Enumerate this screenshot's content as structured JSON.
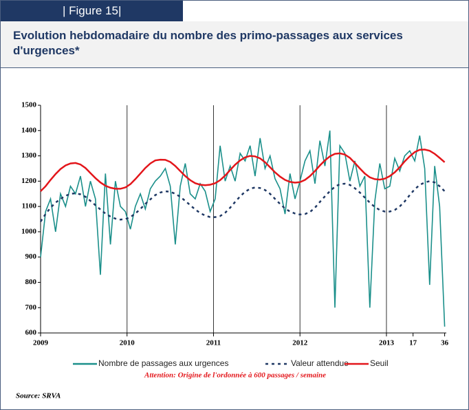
{
  "header": {
    "figure": "| Figure 15|"
  },
  "chart_data": {
    "type": "line",
    "title": "Evolution hebdomadaire du nombre des primo-passages  aux services d'urgences*",
    "x": [
      0,
      3,
      6,
      9,
      12,
      15,
      18,
      21,
      24,
      27,
      30,
      33,
      36,
      39,
      42,
      45,
      48,
      51,
      54,
      57,
      60,
      63,
      66,
      69,
      72,
      75,
      78,
      81,
      84,
      87,
      90,
      93,
      96,
      99,
      102,
      105,
      108,
      111,
      114,
      117,
      120,
      123,
      126,
      129,
      132,
      135,
      138,
      141,
      144,
      147,
      150,
      153,
      156,
      159,
      162,
      165,
      168,
      171,
      174,
      177,
      180,
      183,
      186,
      189,
      192,
      195,
      198,
      201,
      204,
      207,
      210,
      213,
      216,
      219,
      222,
      225,
      228,
      231,
      234,
      237,
      240,
      243
    ],
    "xlim": [
      0,
      244
    ],
    "xticks": [
      {
        "value": 0,
        "label": "2009"
      },
      {
        "value": 52,
        "label": "2010"
      },
      {
        "value": 104,
        "label": "2011"
      },
      {
        "value": 156,
        "label": "2012"
      },
      {
        "value": 208,
        "label": "2013"
      },
      {
        "value": 224,
        "label": "17"
      },
      {
        "value": 243,
        "label": "36"
      }
    ],
    "ylim": [
      600,
      1500
    ],
    "yticks": [
      600,
      700,
      800,
      900,
      1000,
      1100,
      1200,
      1300,
      1400,
      1500
    ],
    "series": [
      {
        "name": "Nombre de passages aux urgences",
        "color": "#1a8f8a",
        "linestyle": "solid",
        "values": [
          900,
          1080,
          1130,
          1000,
          1150,
          1100,
          1180,
          1150,
          1220,
          1100,
          1200,
          1130,
          830,
          1230,
          950,
          1200,
          1100,
          1080,
          1010,
          1100,
          1150,
          1090,
          1170,
          1200,
          1220,
          1250,
          1180,
          950,
          1180,
          1270,
          1150,
          1130,
          1190,
          1160,
          1080,
          1130,
          1340,
          1200,
          1260,
          1200,
          1310,
          1280,
          1340,
          1220,
          1370,
          1250,
          1300,
          1210,
          1170,
          1070,
          1230,
          1130,
          1200,
          1280,
          1320,
          1190,
          1360,
          1260,
          1400,
          700,
          1340,
          1310,
          1200,
          1280,
          1180,
          1220,
          700,
          1120,
          1270,
          1170,
          1180,
          1290,
          1240,
          1300,
          1320,
          1280,
          1380,
          1250,
          790,
          1260,
          1100,
          625
        ]
      },
      {
        "name": "Valeur attendue",
        "color": "#1f3864",
        "linestyle": "dotted",
        "values": [
          1040,
          1070,
          1095,
          1115,
          1130,
          1142,
          1150,
          1152,
          1148,
          1138,
          1122,
          1105,
          1088,
          1072,
          1060,
          1052,
          1048,
          1050,
          1058,
          1072,
          1090,
          1110,
          1128,
          1145,
          1155,
          1160,
          1158,
          1150,
          1138,
          1122,
          1105,
          1088,
          1074,
          1064,
          1058,
          1058,
          1062,
          1075,
          1095,
          1118,
          1140,
          1158,
          1170,
          1175,
          1173,
          1165,
          1150,
          1130,
          1110,
          1092,
          1080,
          1072,
          1068,
          1070,
          1078,
          1095,
          1118,
          1140,
          1160,
          1178,
          1188,
          1190,
          1185,
          1172,
          1155,
          1135,
          1115,
          1098,
          1086,
          1080,
          1080,
          1086,
          1100,
          1120,
          1145,
          1168,
          1185,
          1195,
          1200,
          1195,
          1180,
          1160
        ]
      },
      {
        "name": "Seuil",
        "color": "#e3151a",
        "linestyle": "solid",
        "values": [
          1160,
          1180,
          1205,
          1228,
          1248,
          1262,
          1270,
          1272,
          1266,
          1252,
          1232,
          1212,
          1195,
          1182,
          1174,
          1170,
          1170,
          1175,
          1188,
          1208,
          1230,
          1252,
          1270,
          1282,
          1285,
          1284,
          1276,
          1260,
          1240,
          1220,
          1204,
          1192,
          1186,
          1184,
          1186,
          1192,
          1204,
          1222,
          1244,
          1265,
          1282,
          1294,
          1300,
          1298,
          1290,
          1275,
          1255,
          1235,
          1218,
          1205,
          1197,
          1194,
          1196,
          1205,
          1220,
          1240,
          1262,
          1282,
          1298,
          1308,
          1310,
          1305,
          1292,
          1272,
          1250,
          1230,
          1215,
          1208,
          1206,
          1210,
          1220,
          1235,
          1255,
          1278,
          1298,
          1315,
          1324,
          1325,
          1320,
          1308,
          1292,
          1275
        ]
      }
    ],
    "annotation": "Attention: Origine de l'ordonnée à 600 passages / semaine",
    "source": "Source: SRVA"
  }
}
